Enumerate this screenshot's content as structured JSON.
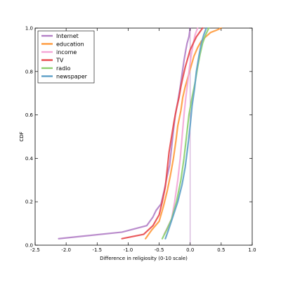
{
  "chart_data": {
    "type": "line",
    "xlabel": "Difference in religiosity (0-10 scale)",
    "ylabel": "CDF",
    "xlim": [
      -2.5,
      1.0
    ],
    "ylim": [
      0.0,
      1.0
    ],
    "xticks": [
      "-2.5",
      "-2.0",
      "-1.5",
      "-1.0",
      "-0.5",
      "0.0",
      "0.5",
      "1.0"
    ],
    "yticks": [
      "0.0",
      "0.2",
      "0.4",
      "0.6",
      "0.8",
      "1.0"
    ],
    "grid": false,
    "legend_position": "top-left",
    "vline": {
      "x": 0.0,
      "color": "#c8a0d0"
    },
    "series": [
      {
        "name": "Internet",
        "color": "#b37fc6",
        "x": [
          -2.12,
          -1.1,
          -0.7,
          -0.6,
          -0.55,
          -0.47,
          -0.42,
          -0.37,
          -0.33,
          -0.3,
          -0.27,
          -0.24,
          -0.2,
          -0.16,
          -0.13,
          -0.1,
          -0.07,
          -0.05,
          -0.02,
          0.0
        ],
        "y": [
          0.03,
          0.06,
          0.09,
          0.13,
          0.16,
          0.19,
          0.25,
          0.32,
          0.37,
          0.45,
          0.53,
          0.6,
          0.66,
          0.73,
          0.79,
          0.85,
          0.9,
          0.93,
          0.96,
          1.0
        ]
      },
      {
        "name": "education",
        "color": "#ff9a3c",
        "x": [
          -0.72,
          -0.62,
          -0.5,
          -0.43,
          -0.37,
          -0.32,
          -0.27,
          -0.23,
          -0.2,
          -0.15,
          -0.12,
          -0.08,
          -0.03,
          0.02,
          0.06,
          0.12,
          0.18,
          0.25,
          0.33,
          0.42,
          0.5
        ],
        "y": [
          0.03,
          0.07,
          0.11,
          0.18,
          0.25,
          0.32,
          0.4,
          0.48,
          0.55,
          0.62,
          0.68,
          0.73,
          0.78,
          0.83,
          0.87,
          0.91,
          0.94,
          0.96,
          0.98,
          0.99,
          1.0
        ]
      },
      {
        "name": "income",
        "color": "#f4a6d7",
        "x": [
          -0.42,
          -0.3,
          -0.25,
          -0.2,
          -0.16,
          -0.13,
          -0.1,
          -0.07,
          -0.04,
          -0.01,
          0.02,
          0.05,
          0.08,
          0.12
        ],
        "y": [
          0.05,
          0.12,
          0.2,
          0.3,
          0.4,
          0.5,
          0.6,
          0.68,
          0.75,
          0.82,
          0.88,
          0.93,
          0.97,
          1.0
        ]
      },
      {
        "name": "TV",
        "color": "#e8494d",
        "x": [
          -1.1,
          -0.75,
          -0.6,
          -0.5,
          -0.45,
          -0.4,
          -0.37,
          -0.34,
          -0.3,
          -0.26,
          -0.22,
          -0.18,
          -0.15,
          -0.12,
          -0.08,
          -0.04,
          0.0,
          0.05,
          0.1,
          0.15,
          0.2
        ],
        "y": [
          0.03,
          0.05,
          0.09,
          0.14,
          0.2,
          0.27,
          0.35,
          0.43,
          0.5,
          0.57,
          0.63,
          0.68,
          0.73,
          0.77,
          0.82,
          0.86,
          0.9,
          0.93,
          0.96,
          0.98,
          1.0
        ]
      },
      {
        "name": "radio",
        "color": "#8ccf6e",
        "x": [
          -0.45,
          -0.38,
          -0.3,
          -0.22,
          -0.15,
          -0.1,
          -0.06,
          -0.02,
          0.03,
          0.08,
          0.12,
          0.16,
          0.2,
          0.25,
          0.3
        ],
        "y": [
          0.03,
          0.07,
          0.12,
          0.2,
          0.3,
          0.4,
          0.5,
          0.6,
          0.68,
          0.75,
          0.82,
          0.88,
          0.93,
          0.97,
          1.0
        ]
      },
      {
        "name": "newspaper",
        "color": "#5ea0c8",
        "x": [
          -0.4,
          -0.35,
          -0.28,
          -0.2,
          -0.13,
          -0.08,
          -0.04,
          0.0,
          0.03,
          0.07,
          0.1,
          0.14,
          0.18,
          0.22,
          0.26
        ],
        "y": [
          0.03,
          0.07,
          0.13,
          0.2,
          0.28,
          0.36,
          0.45,
          0.55,
          0.64,
          0.72,
          0.8,
          0.87,
          0.93,
          0.97,
          1.0
        ]
      }
    ]
  }
}
